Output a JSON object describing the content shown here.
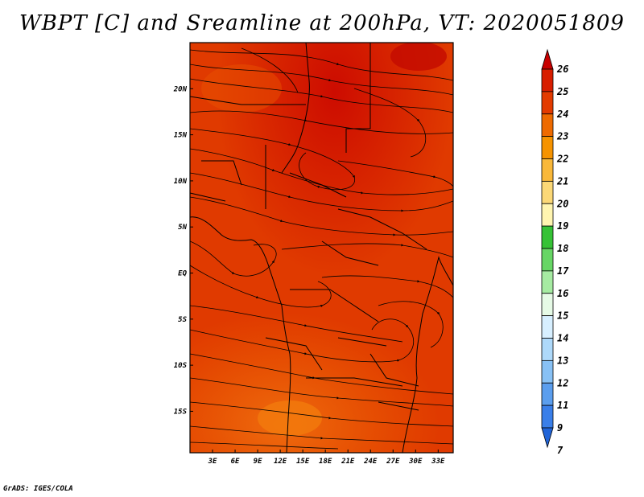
{
  "title": "WBPT [C] and Sreamline at 200hPa, VT: 2020051809",
  "credit": "GrADS: IGES/COLA",
  "map": {
    "lon_range": [
      0,
      35
    ],
    "lat_range": [
      -19.5,
      25
    ],
    "lon_ticks": [
      "3E",
      "6E",
      "9E",
      "12E",
      "15E",
      "18E",
      "21E",
      "24E",
      "27E",
      "30E",
      "33E"
    ],
    "lat_ticks": [
      "20N",
      "15N",
      "10N",
      "5N",
      "EQ",
      "5S",
      "10S",
      "15S"
    ]
  },
  "colorbar": {
    "labels": [
      "26",
      "25",
      "24",
      "23",
      "22",
      "21",
      "20",
      "19",
      "18",
      "17",
      "16",
      "15",
      "14",
      "13",
      "12",
      "11",
      "9",
      "7"
    ],
    "colors": [
      "#c80000",
      "#d81e00",
      "#e33b00",
      "#ee6a00",
      "#f69300",
      "#f9b83a",
      "#fbd877",
      "#fff5b0",
      "#36c236",
      "#67d665",
      "#a6eba2",
      "#e6fae6",
      "#d7efff",
      "#aed9fa",
      "#88c1f5",
      "#5b9eee",
      "#3a7fe9",
      "#2064d8"
    ]
  }
}
